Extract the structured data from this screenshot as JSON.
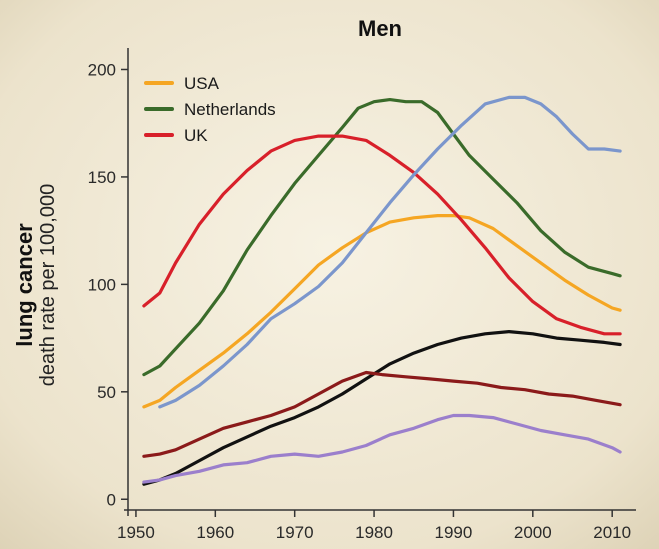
{
  "chart_data": {
    "type": "line",
    "title": "Men",
    "ylabel_line1": "lung cancer",
    "ylabel_line2": "death rate per 100,000",
    "xlabel": "",
    "xlim": [
      1949,
      2013
    ],
    "ylim": [
      -5,
      210
    ],
    "x_ticks": [
      1950,
      1960,
      1970,
      1980,
      1990,
      2000,
      2010
    ],
    "y_ticks": [
      0,
      50,
      100,
      150,
      200
    ],
    "grid": false,
    "legend_position": "top-left",
    "series": [
      {
        "name": "USA",
        "in_legend": true,
        "color": "#f5a623",
        "x": [
          1951,
          1953,
          1955,
          1958,
          1961,
          1964,
          1967,
          1970,
          1973,
          1976,
          1979,
          1982,
          1985,
          1988,
          1990,
          1992,
          1995,
          1998,
          2001,
          2004,
          2007,
          2010,
          2011
        ],
        "y": [
          43,
          46,
          52,
          60,
          68,
          77,
          87,
          98,
          109,
          117,
          124,
          129,
          131,
          132,
          132,
          131,
          126,
          118,
          110,
          102,
          95,
          89,
          88
        ]
      },
      {
        "name": "Netherlands",
        "in_legend": true,
        "color": "#3a6b2a",
        "x": [
          1951,
          1953,
          1955,
          1958,
          1961,
          1964,
          1967,
          1970,
          1973,
          1976,
          1978,
          1980,
          1982,
          1984,
          1986,
          1988,
          1990,
          1992,
          1995,
          1998,
          2001,
          2004,
          2007,
          2010,
          2011
        ],
        "y": [
          58,
          62,
          70,
          82,
          97,
          116,
          132,
          147,
          160,
          173,
          182,
          185,
          186,
          185,
          185,
          180,
          170,
          160,
          149,
          138,
          125,
          115,
          108,
          105,
          104
        ]
      },
      {
        "name": "UK",
        "in_legend": true,
        "color": "#d8202a",
        "x": [
          1951,
          1953,
          1955,
          1958,
          1961,
          1964,
          1967,
          1970,
          1973,
          1976,
          1979,
          1982,
          1985,
          1988,
          1991,
          1994,
          1997,
          2000,
          2003,
          2006,
          2009,
          2011
        ],
        "y": [
          90,
          96,
          110,
          128,
          142,
          153,
          162,
          167,
          169,
          169,
          167,
          160,
          152,
          142,
          130,
          117,
          103,
          92,
          84,
          80,
          77,
          77
        ]
      },
      {
        "name": "",
        "in_legend": false,
        "color": "#7b96cc",
        "x": [
          1953,
          1955,
          1958,
          1961,
          1964,
          1967,
          1970,
          1973,
          1976,
          1979,
          1982,
          1985,
          1988,
          1991,
          1994,
          1997,
          1999,
          2001,
          2003,
          2005,
          2007,
          2009,
          2011
        ],
        "y": [
          43,
          46,
          53,
          62,
          72,
          84,
          91,
          99,
          110,
          124,
          138,
          151,
          163,
          174,
          184,
          187,
          187,
          184,
          178,
          170,
          163,
          163,
          162
        ]
      },
      {
        "name": "",
        "in_legend": false,
        "color": "#111111",
        "x": [
          1951,
          1953,
          1955,
          1958,
          1961,
          1964,
          1967,
          1970,
          1973,
          1976,
          1979,
          1982,
          1985,
          1988,
          1991,
          1994,
          1997,
          2000,
          2003,
          2006,
          2009,
          2011
        ],
        "y": [
          7,
          9,
          12,
          18,
          24,
          29,
          34,
          38,
          43,
          49,
          56,
          63,
          68,
          72,
          75,
          77,
          78,
          77,
          75,
          74,
          73,
          72
        ]
      },
      {
        "name": "",
        "in_legend": false,
        "color": "#8b1a1a",
        "x": [
          1951,
          1953,
          1955,
          1958,
          1961,
          1964,
          1967,
          1970,
          1973,
          1976,
          1979,
          1981,
          1984,
          1987,
          1990,
          1993,
          1996,
          1999,
          2002,
          2005,
          2008,
          2011
        ],
        "y": [
          20,
          21,
          23,
          28,
          33,
          36,
          39,
          43,
          49,
          55,
          59,
          58,
          57,
          56,
          55,
          54,
          52,
          51,
          49,
          48,
          46,
          44
        ]
      },
      {
        "name": "",
        "in_legend": false,
        "color": "#9b7fcc",
        "x": [
          1951,
          1953,
          1955,
          1958,
          1961,
          1964,
          1967,
          1970,
          1973,
          1976,
          1979,
          1982,
          1985,
          1988,
          1990,
          1992,
          1995,
          1998,
          2001,
          2004,
          2007,
          2010,
          2011
        ],
        "y": [
          8,
          9,
          11,
          13,
          16,
          17,
          20,
          21,
          20,
          22,
          25,
          30,
          33,
          37,
          39,
          39,
          38,
          35,
          32,
          30,
          28,
          24,
          22
        ]
      }
    ]
  }
}
